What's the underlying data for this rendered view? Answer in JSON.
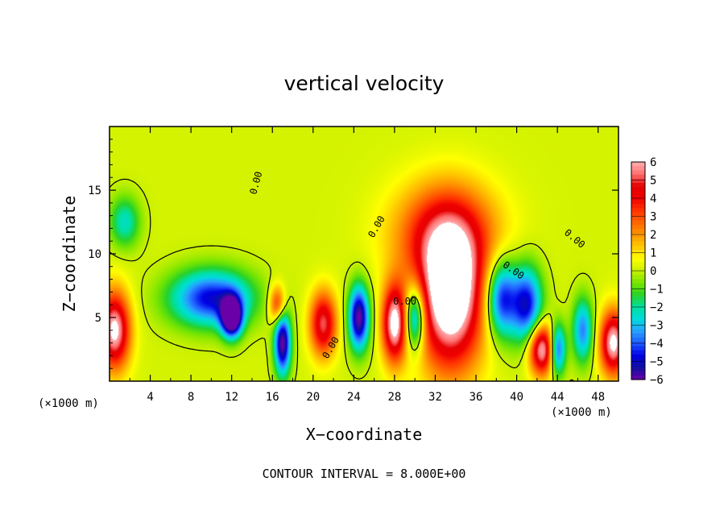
{
  "chart_data": {
    "type": "heatmap",
    "title": "vertical velocity",
    "xlabel": "X−coordinate",
    "ylabel": "Z−coordinate",
    "x_units": "(×1000 m)",
    "y_units": "(×1000 m)",
    "xlim": [
      0,
      50
    ],
    "ylim": [
      0,
      20
    ],
    "x_ticks": [
      4,
      8,
      12,
      16,
      20,
      24,
      28,
      32,
      36,
      40,
      44,
      48
    ],
    "y_ticks": [
      5,
      10,
      15
    ],
    "colorbar": {
      "labels": [
        "6",
        "5",
        "4",
        "3",
        "2",
        "1",
        "0",
        "−1",
        "−2",
        "−3",
        "−4",
        "−5",
        "−6"
      ],
      "range": [
        -6,
        6
      ],
      "colors": [
        "#6a00a8",
        "#1010a0",
        "#0000e6",
        "#1e5aff",
        "#28a0ff",
        "#00dcdc",
        "#00e0a0",
        "#28d228",
        "#78e600",
        "#c8f000",
        "#ffff00",
        "#ffc800",
        "#ff9600",
        "#ff6400",
        "#ff3200",
        "#f00000",
        "#e60000",
        "#ff7070",
        "#ffb0b0"
      ]
    },
    "contour_labels": [
      "0.00",
      "0.00",
      "0.00",
      "0.00",
      "0.00",
      "0.00"
    ],
    "footer": "CONTOUR INTERVAL = 8.000E+00",
    "features": [
      {
        "name": "updraft",
        "x": 33.5,
        "z": 6.5,
        "value": 6,
        "sx": 3.2,
        "sz": 5.5
      },
      {
        "name": "updraft",
        "x": 28.0,
        "z": 4.5,
        "value": 5,
        "sx": 1.2,
        "sz": 3.0
      },
      {
        "name": "updraft",
        "x": 0.5,
        "z": 4.0,
        "value": 5,
        "sx": 1.5,
        "sz": 3.0
      },
      {
        "name": "updraft",
        "x": 42.5,
        "z": 2.5,
        "value": 5,
        "sx": 1.3,
        "sz": 2.0
      },
      {
        "name": "updraft",
        "x": 49.5,
        "z": 3.0,
        "value": 5,
        "sx": 1.3,
        "sz": 2.5
      },
      {
        "name": "updraft",
        "x": 21.0,
        "z": 4.5,
        "value": 4,
        "sx": 1.3,
        "sz": 2.5
      },
      {
        "name": "updraft",
        "x": 16.5,
        "z": 6.0,
        "value": 3,
        "sx": 0.8,
        "sz": 1.5
      },
      {
        "name": "updraft",
        "x": 33.0,
        "z": 11.5,
        "value": 3,
        "sx": 5.0,
        "sz": 4.0
      },
      {
        "name": "downdraft",
        "x": 10.0,
        "z": 6.5,
        "value": -4,
        "sx": 4.0,
        "sz": 2.2
      },
      {
        "name": "downdraft",
        "x": 12.0,
        "z": 5.0,
        "value": -6,
        "sx": 1.0,
        "sz": 1.5
      },
      {
        "name": "downdraft",
        "x": 17.0,
        "z": 3.0,
        "value": -5,
        "sx": 0.8,
        "sz": 2.5
      },
      {
        "name": "downdraft",
        "x": 24.5,
        "z": 5.0,
        "value": -5,
        "sx": 1.0,
        "sz": 2.5
      },
      {
        "name": "downdraft",
        "x": 30.0,
        "z": 5.0,
        "value": -4,
        "sx": 1.0,
        "sz": 2.5
      },
      {
        "name": "downdraft",
        "x": 38.5,
        "z": 6.5,
        "value": -4,
        "sx": 1.5,
        "sz": 3.0
      },
      {
        "name": "downdraft",
        "x": 41.0,
        "z": 6.0,
        "value": -4,
        "sx": 1.5,
        "sz": 3.0
      },
      {
        "name": "downdraft",
        "x": 44.0,
        "z": 2.5,
        "value": -4,
        "sx": 0.8,
        "sz": 2.0
      },
      {
        "name": "downdraft",
        "x": 46.5,
        "z": 4.0,
        "value": -3,
        "sx": 1.0,
        "sz": 2.5
      },
      {
        "name": "downdraft",
        "x": 1.5,
        "z": 12.5,
        "value": -2,
        "sx": 1.5,
        "sz": 2.0
      }
    ]
  }
}
